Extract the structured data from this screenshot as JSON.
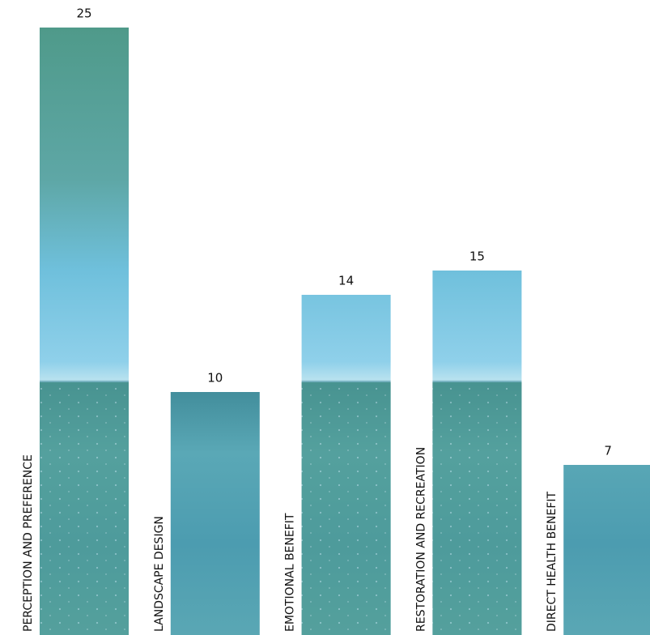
{
  "chart_data": {
    "type": "bar",
    "categories": [
      "PERCEPTION AND PREFERENCE",
      "LANDSCAPE DESIGN",
      "EMOTIONAL BENEFIT",
      "RESTORATION AND RECREATION",
      "DIRECT HEALTH BENEFIT"
    ],
    "values": [
      25,
      10,
      14,
      15,
      7
    ]
  }
}
